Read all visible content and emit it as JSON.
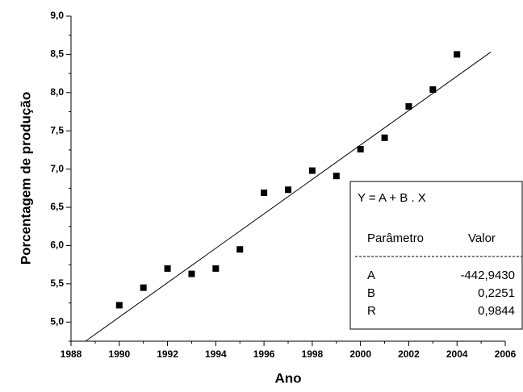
{
  "chart_data": {
    "type": "scatter",
    "x_label": "Ano",
    "y_label": "Porcentagem de produção",
    "x": [
      1990,
      1991,
      1992,
      1993,
      1994,
      1995,
      1996,
      1997,
      1998,
      1999,
      2000,
      2001,
      2002,
      2003,
      2004
    ],
    "values": [
      5.22,
      5.45,
      5.7,
      5.63,
      5.7,
      5.95,
      6.69,
      6.73,
      6.98,
      6.91,
      7.26,
      7.41,
      7.82,
      8.04,
      8.5
    ],
    "color": "#000000",
    "fit_line": {
      "x": [
        1988.6,
        2005.4
      ],
      "y": [
        4.75,
        8.53
      ],
      "color": "#000000"
    },
    "xlim": [
      1988,
      2006
    ],
    "xticks": [
      1988,
      1990,
      1992,
      1994,
      1996,
      1998,
      2000,
      2002,
      2004,
      2006
    ],
    "xminorticks": [
      1989,
      1991,
      1993,
      1995,
      1997,
      1999,
      2001,
      2003,
      2005
    ],
    "ylim": [
      4.75,
      9.0
    ],
    "yticks": [
      {
        "value": 5.0,
        "label": "5,0"
      },
      {
        "value": 5.5,
        "label": "5,5"
      },
      {
        "value": 6.0,
        "label": "6,0"
      },
      {
        "value": 6.5,
        "label": "6,5"
      },
      {
        "value": 7.0,
        "label": "7,0"
      },
      {
        "value": 7.5,
        "label": "7,5"
      },
      {
        "value": 8.0,
        "label": "8,0"
      },
      {
        "value": 8.5,
        "label": "8,5"
      },
      {
        "value": 9.0,
        "label": "9,0"
      }
    ],
    "yminorticks": [
      4.75,
      5.25,
      5.75,
      6.25,
      6.75,
      7.25,
      7.75,
      8.25,
      8.75
    ],
    "fit_table": {
      "equation": "Y = A + B . X",
      "headers": [
        "Parâmetro",
        "Valor"
      ],
      "rows": [
        [
          "A",
          "-442,9430"
        ],
        [
          "B",
          "0,2251"
        ],
        [
          "R",
          "0,9844"
        ]
      ]
    }
  }
}
